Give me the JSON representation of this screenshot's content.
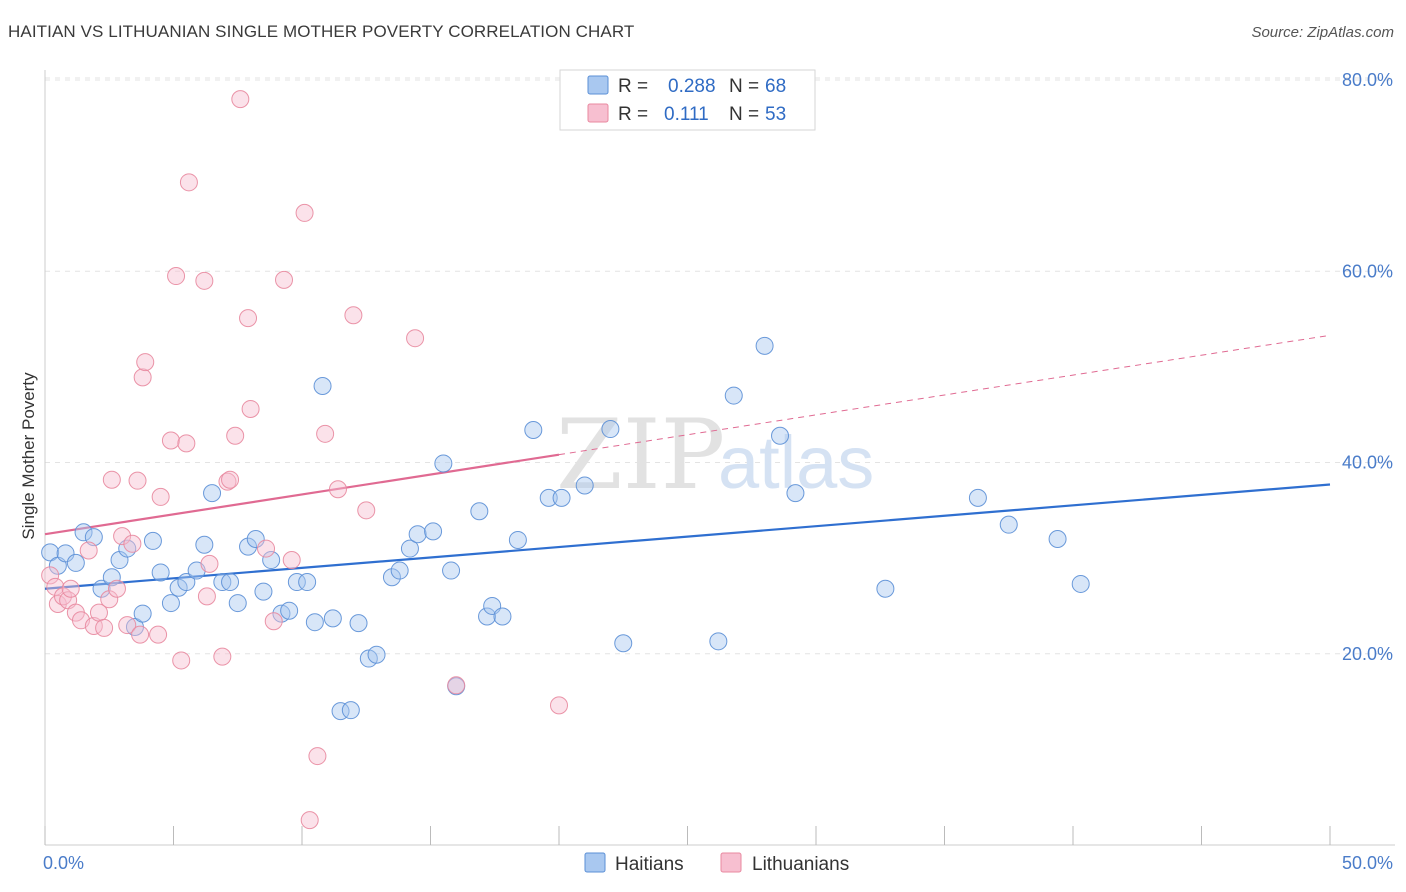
{
  "header": {
    "title": "HAITIAN VS LITHUANIAN SINGLE MOTHER POVERTY CORRELATION CHART",
    "source": "Source: ZipAtlas.com"
  },
  "watermark": {
    "zip": "ZIP",
    "atlas": "atlas"
  },
  "legend": {
    "rows": [
      {
        "r_label": "R =",
        "r_value": "0.288",
        "n_label": "N =",
        "n_value": "68",
        "color": "#a9c8f0",
        "stroke": "#5b8fd6"
      },
      {
        "r_label": "R =",
        "r_value": "0.111",
        "n_label": "N =",
        "n_value": "53",
        "color": "#f7bfd0",
        "stroke": "#e8889f"
      }
    ]
  },
  "bottom_legend": {
    "items": [
      {
        "label": "Haitians"
      },
      {
        "label": "Lithuanians"
      }
    ]
  },
  "chart_data": {
    "type": "scatter",
    "ylabel": "Single Mother Poverty",
    "xlim": [
      0,
      50
    ],
    "ylim": [
      0,
      82
    ],
    "x_tick_labels": [
      "0.0%",
      "50.0%"
    ],
    "y_ticks": [
      20,
      40,
      60,
      80
    ],
    "y_tick_labels": [
      "20.0%",
      "40.0%",
      "60.0%",
      "80.0%"
    ],
    "grid": true,
    "legend_position": "top-center",
    "series": [
      {
        "name": "Haitians",
        "color": "#a9c8f0",
        "stroke": "#5b8fd6",
        "trend": {
          "x0": 0,
          "y0": 26.8,
          "x1": 50,
          "y1": 37.7,
          "dashed_from": null
        },
        "points": [
          [
            0.2,
            30.6
          ],
          [
            0.5,
            29.2
          ],
          [
            0.8,
            30.5
          ],
          [
            1.2,
            29.5
          ],
          [
            1.5,
            32.7
          ],
          [
            1.9,
            32.2
          ],
          [
            2.2,
            26.8
          ],
          [
            2.6,
            28.0
          ],
          [
            2.9,
            29.8
          ],
          [
            3.2,
            31.0
          ],
          [
            3.5,
            22.8
          ],
          [
            3.8,
            24.2
          ],
          [
            4.2,
            31.8
          ],
          [
            4.5,
            28.5
          ],
          [
            4.9,
            25.3
          ],
          [
            5.2,
            26.9
          ],
          [
            5.5,
            27.5
          ],
          [
            5.9,
            28.7
          ],
          [
            6.2,
            31.4
          ],
          [
            6.5,
            36.8
          ],
          [
            6.9,
            27.5
          ],
          [
            7.2,
            27.5
          ],
          [
            7.5,
            25.3
          ],
          [
            7.9,
            31.2
          ],
          [
            8.2,
            32.0
          ],
          [
            8.5,
            26.5
          ],
          [
            8.8,
            29.8
          ],
          [
            9.2,
            24.2
          ],
          [
            9.5,
            24.5
          ],
          [
            9.8,
            27.5
          ],
          [
            10.2,
            27.5
          ],
          [
            10.5,
            23.3
          ],
          [
            10.8,
            48.0
          ],
          [
            11.2,
            23.7
          ],
          [
            11.5,
            14.0
          ],
          [
            11.9,
            14.1
          ],
          [
            12.2,
            23.2
          ],
          [
            12.6,
            19.5
          ],
          [
            12.9,
            19.9
          ],
          [
            13.5,
            28.0
          ],
          [
            13.8,
            28.7
          ],
          [
            14.2,
            31.0
          ],
          [
            14.5,
            32.5
          ],
          [
            15.1,
            32.8
          ],
          [
            15.5,
            39.9
          ],
          [
            15.8,
            28.7
          ],
          [
            16.0,
            16.6
          ],
          [
            16.9,
            34.9
          ],
          [
            17.2,
            23.9
          ],
          [
            17.4,
            25.0
          ],
          [
            17.8,
            23.9
          ],
          [
            18.4,
            31.9
          ],
          [
            19.0,
            43.4
          ],
          [
            19.6,
            36.3
          ],
          [
            20.1,
            36.3
          ],
          [
            21.0,
            37.6
          ],
          [
            22.0,
            43.5
          ],
          [
            22.5,
            21.1
          ],
          [
            26.2,
            21.3
          ],
          [
            26.8,
            47.0
          ],
          [
            28.0,
            52.2
          ],
          [
            28.6,
            42.8
          ],
          [
            29.2,
            36.8
          ],
          [
            32.7,
            26.8
          ],
          [
            36.3,
            36.3
          ],
          [
            37.5,
            33.5
          ],
          [
            39.4,
            32.0
          ],
          [
            40.3,
            27.3
          ]
        ]
      },
      {
        "name": "Lithuanians",
        "color": "#f7bfd0",
        "stroke": "#e8889f",
        "trend": {
          "x0": 0,
          "y0": 32.5,
          "x1": 50,
          "y1": 53.3,
          "dashed_from": 20.0
        },
        "points": [
          [
            0.2,
            28.2
          ],
          [
            0.4,
            27.0
          ],
          [
            0.5,
            25.2
          ],
          [
            0.7,
            26.0
          ],
          [
            0.9,
            25.6
          ],
          [
            1.0,
            26.8
          ],
          [
            1.2,
            24.3
          ],
          [
            1.4,
            23.5
          ],
          [
            1.7,
            30.8
          ],
          [
            1.9,
            22.9
          ],
          [
            2.1,
            24.3
          ],
          [
            2.3,
            22.7
          ],
          [
            2.5,
            25.7
          ],
          [
            2.6,
            38.2
          ],
          [
            2.8,
            26.8
          ],
          [
            3.0,
            32.3
          ],
          [
            3.2,
            23.0
          ],
          [
            3.4,
            31.5
          ],
          [
            3.6,
            38.1
          ],
          [
            3.7,
            22.0
          ],
          [
            3.8,
            48.9
          ],
          [
            3.9,
            50.5
          ],
          [
            4.4,
            22.0
          ],
          [
            4.5,
            36.4
          ],
          [
            4.9,
            42.3
          ],
          [
            5.1,
            59.5
          ],
          [
            5.3,
            19.3
          ],
          [
            5.5,
            42.0
          ],
          [
            5.6,
            69.3
          ],
          [
            6.2,
            59.0
          ],
          [
            6.3,
            26.0
          ],
          [
            6.4,
            29.4
          ],
          [
            6.9,
            19.7
          ],
          [
            7.1,
            38.0
          ],
          [
            7.2,
            38.2
          ],
          [
            7.4,
            42.8
          ],
          [
            7.6,
            78.0
          ],
          [
            7.9,
            55.1
          ],
          [
            8.0,
            45.6
          ],
          [
            8.6,
            31.0
          ],
          [
            8.9,
            23.4
          ],
          [
            9.3,
            59.1
          ],
          [
            9.6,
            29.8
          ],
          [
            10.1,
            66.1
          ],
          [
            10.3,
            2.6
          ],
          [
            10.6,
            9.3
          ],
          [
            10.9,
            43.0
          ],
          [
            11.4,
            37.2
          ],
          [
            12.0,
            55.4
          ],
          [
            12.5,
            35.0
          ],
          [
            14.4,
            53.0
          ],
          [
            16.0,
            16.7
          ],
          [
            20.0,
            14.6
          ]
        ]
      }
    ]
  }
}
